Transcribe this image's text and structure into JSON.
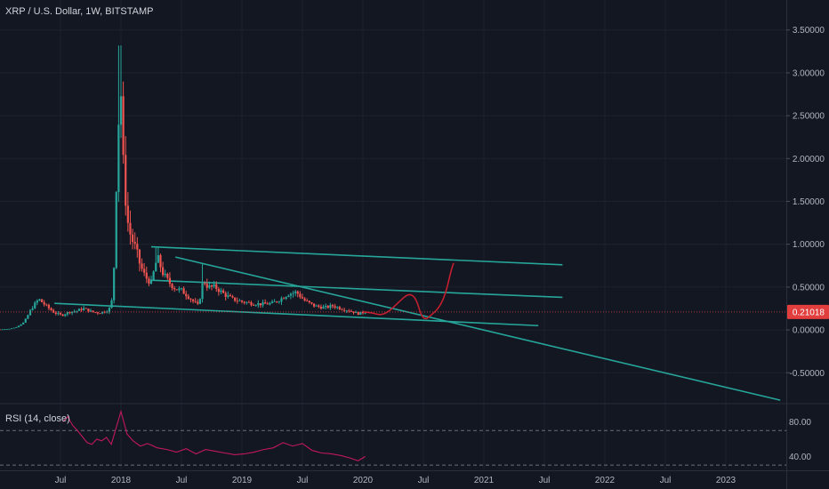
{
  "header": {
    "title": "XRP / U.S. Dollar, 1W, BITSTAMP"
  },
  "colors": {
    "background": "#131722",
    "grid": "#1e222d",
    "axis_text": "#b2b5be",
    "up": "#26a69a",
    "down": "#ef5350",
    "trendline": "#26a69a",
    "projection": "#c21f2f",
    "rsi_line": "#c2185b",
    "price_label_bg": "#e23e3e",
    "separator": "#2a2e39"
  },
  "chart_data": [
    {
      "type": "candlestick",
      "title": "XRP / U.S. Dollar, 1W, BITSTAMP",
      "x_axis": {
        "labels": [
          "Jul",
          "2018",
          "Jul",
          "2019",
          "Jul",
          "2020",
          "Jul",
          "2021",
          "Jul",
          "2022",
          "Jul",
          "2023"
        ],
        "ticks_year": [
          2017.5,
          2018.0,
          2018.5,
          2019.0,
          2019.5,
          2020.0,
          2020.5,
          2021.0,
          2021.5,
          2022.0,
          2022.5,
          2023.0
        ],
        "range": [
          2017.0,
          2023.5
        ]
      },
      "y_axis": {
        "labels": [
          "3.50000",
          "3.00000",
          "2.50000",
          "2.00000",
          "1.50000",
          "1.00000",
          "0.50000",
          "0.00000",
          "-0.50000"
        ],
        "values": [
          3.5,
          3.0,
          2.5,
          2.0,
          1.5,
          1.0,
          0.5,
          0.0,
          -0.5
        ],
        "range": [
          -0.85,
          3.85
        ]
      },
      "current_price": {
        "label": "0.21018",
        "value": 0.21018
      },
      "price_path": [
        [
          2017.0,
          0.006
        ],
        [
          2017.07,
          0.01
        ],
        [
          2017.13,
          0.03
        ],
        [
          2017.2,
          0.09
        ],
        [
          2017.26,
          0.25
        ],
        [
          2017.32,
          0.36
        ],
        [
          2017.38,
          0.28
        ],
        [
          2017.45,
          0.2
        ],
        [
          2017.51,
          0.17
        ],
        [
          2017.57,
          0.21
        ],
        [
          2017.63,
          0.22
        ],
        [
          2017.69,
          0.25
        ],
        [
          2017.76,
          0.21
        ],
        [
          2017.82,
          0.2
        ],
        [
          2017.88,
          0.22
        ],
        [
          2017.92,
          0.27
        ],
        [
          2017.95,
          0.9
        ],
        [
          2017.97,
          2.3
        ],
        [
          2018.0,
          2.75
        ],
        [
          2018.02,
          1.9
        ],
        [
          2018.05,
          1.3
        ],
        [
          2018.08,
          1.1
        ],
        [
          2018.12,
          0.95
        ],
        [
          2018.16,
          0.75
        ],
        [
          2018.2,
          0.62
        ],
        [
          2018.25,
          0.55
        ],
        [
          2018.3,
          0.85
        ],
        [
          2018.35,
          0.65
        ],
        [
          2018.4,
          0.55
        ],
        [
          2018.45,
          0.48
        ],
        [
          2018.5,
          0.46
        ],
        [
          2018.55,
          0.4
        ],
        [
          2018.6,
          0.33
        ],
        [
          2018.64,
          0.28
        ],
        [
          2018.68,
          0.58
        ],
        [
          2018.72,
          0.5
        ],
        [
          2018.78,
          0.5
        ],
        [
          2018.85,
          0.42
        ],
        [
          2018.92,
          0.36
        ],
        [
          2019.0,
          0.33
        ],
        [
          2019.08,
          0.31
        ],
        [
          2019.17,
          0.3
        ],
        [
          2019.25,
          0.31
        ],
        [
          2019.32,
          0.36
        ],
        [
          2019.38,
          0.42
        ],
        [
          2019.45,
          0.44
        ],
        [
          2019.52,
          0.34
        ],
        [
          2019.6,
          0.28
        ],
        [
          2019.68,
          0.26
        ],
        [
          2019.75,
          0.28
        ],
        [
          2019.82,
          0.25
        ],
        [
          2019.9,
          0.22
        ],
        [
          2019.96,
          0.19
        ],
        [
          2020.02,
          0.21
        ]
      ],
      "trendlines": [
        {
          "from": [
            2018.25,
            0.97
          ],
          "to": [
            2021.65,
            0.76
          ]
        },
        {
          "from": [
            2018.25,
            0.58
          ],
          "to": [
            2021.65,
            0.38
          ]
        },
        {
          "from": [
            2017.45,
            0.31
          ],
          "to": [
            2021.45,
            0.05
          ]
        },
        {
          "from": [
            2018.45,
            0.85
          ],
          "to": [
            2023.45,
            -0.82
          ]
        }
      ],
      "projection_path": [
        [
          2020.0,
          0.21
        ],
        [
          2020.08,
          0.2
        ],
        [
          2020.15,
          0.17
        ],
        [
          2020.22,
          0.22
        ],
        [
          2020.3,
          0.33
        ],
        [
          2020.38,
          0.43
        ],
        [
          2020.44,
          0.37
        ],
        [
          2020.48,
          0.17
        ],
        [
          2020.52,
          0.12
        ],
        [
          2020.56,
          0.17
        ],
        [
          2020.62,
          0.24
        ],
        [
          2020.68,
          0.4
        ],
        [
          2020.73,
          0.7
        ],
        [
          2020.75,
          0.78
        ]
      ]
    },
    {
      "type": "line",
      "title": "RSI (14, close)",
      "y_axis": {
        "labels": [
          "80.00",
          "40.00"
        ],
        "values": [
          80,
          40
        ],
        "range": [
          25,
          100
        ]
      },
      "bands": [
        70,
        30
      ],
      "x": [
        2017.52,
        2017.56,
        2017.6,
        2017.64,
        2017.68,
        2017.72,
        2017.76,
        2017.8,
        2017.84,
        2017.88,
        2017.92,
        2017.96,
        2018.0,
        2018.05,
        2018.1,
        2018.16,
        2018.22,
        2018.3,
        2018.38,
        2018.46,
        2018.54,
        2018.62,
        2018.7,
        2018.78,
        2018.86,
        2018.94,
        2019.02,
        2019.1,
        2019.18,
        2019.26,
        2019.34,
        2019.42,
        2019.5,
        2019.58,
        2019.66,
        2019.74,
        2019.82,
        2019.9,
        2019.96,
        2020.02
      ],
      "values": [
        80,
        86,
        76,
        70,
        63,
        56,
        54,
        60,
        58,
        62,
        54,
        73,
        92,
        66,
        58,
        52,
        55,
        50,
        48,
        45,
        49,
        43,
        48,
        46,
        44,
        42,
        43,
        45,
        48,
        50,
        56,
        52,
        55,
        47,
        44,
        43,
        41,
        38,
        35,
        40
      ]
    }
  ]
}
